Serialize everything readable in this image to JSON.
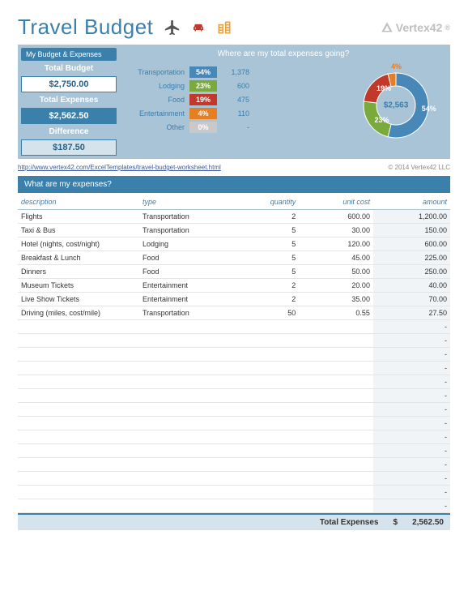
{
  "title": "Travel Budget",
  "logo_text": "Vertex42",
  "panels": {
    "budget_header": "My Budget & Expenses",
    "where_header": "Where are my total expenses going?",
    "total_budget_label": "Total Budget",
    "total_budget": "$2,750.00",
    "total_expenses_label": "Total Expenses",
    "total_expenses": "$2,562.50",
    "difference_label": "Difference",
    "difference": "$187.50",
    "panel_bg": "#a8c4d6",
    "header_blue": "#3b7fab"
  },
  "categories": [
    {
      "label": "Transportation",
      "pct": "54%",
      "value": "1,378",
      "color": "#4788b8",
      "pct_num": 54
    },
    {
      "label": "Lodging",
      "pct": "23%",
      "value": "600",
      "color": "#7aaa3c",
      "pct_num": 23
    },
    {
      "label": "Food",
      "pct": "19%",
      "value": "475",
      "color": "#c0392b",
      "pct_num": 19
    },
    {
      "label": "Entertainment",
      "pct": "4%",
      "value": "110",
      "color": "#e67e22",
      "pct_num": 4
    },
    {
      "label": "Other",
      "pct": "0%",
      "value": "-",
      "color": "#c9c9c9",
      "pct_num": 0
    }
  ],
  "donut_center": "$2,563",
  "link_url": "http://www.vertex42.com/ExcelTemplates/travel-budget-worksheet.html",
  "copyright": "© 2014 Vertex42 LLC",
  "expenses_header": "What are my expenses?",
  "columns": [
    "description",
    "type",
    "quantity",
    "unit cost",
    "amount"
  ],
  "rows": [
    {
      "desc": "Flights",
      "type": "Transportation",
      "qty": "2",
      "unit": "600.00",
      "amt": "1,200.00"
    },
    {
      "desc": "Taxi & Bus",
      "type": "Transportation",
      "qty": "5",
      "unit": "30.00",
      "amt": "150.00"
    },
    {
      "desc": "Hotel (nights, cost/night)",
      "type": "Lodging",
      "qty": "5",
      "unit": "120.00",
      "amt": "600.00"
    },
    {
      "desc": "Breakfast & Lunch",
      "type": "Food",
      "qty": "5",
      "unit": "45.00",
      "amt": "225.00"
    },
    {
      "desc": "Dinners",
      "type": "Food",
      "qty": "5",
      "unit": "50.00",
      "amt": "250.00"
    },
    {
      "desc": "Museum Tickets",
      "type": "Entertainment",
      "qty": "2",
      "unit": "20.00",
      "amt": "40.00"
    },
    {
      "desc": "Live Show Tickets",
      "type": "Entertainment",
      "qty": "2",
      "unit": "35.00",
      "amt": "70.00"
    },
    {
      "desc": "Driving (miles, cost/mile)",
      "type": "Transportation",
      "qty": "50",
      "unit": "0.55",
      "amt": "27.50"
    }
  ],
  "empty_rows_count": 14,
  "total_label": "Total Expenses",
  "total_currency": "$",
  "total_amount": "2,562.50"
}
